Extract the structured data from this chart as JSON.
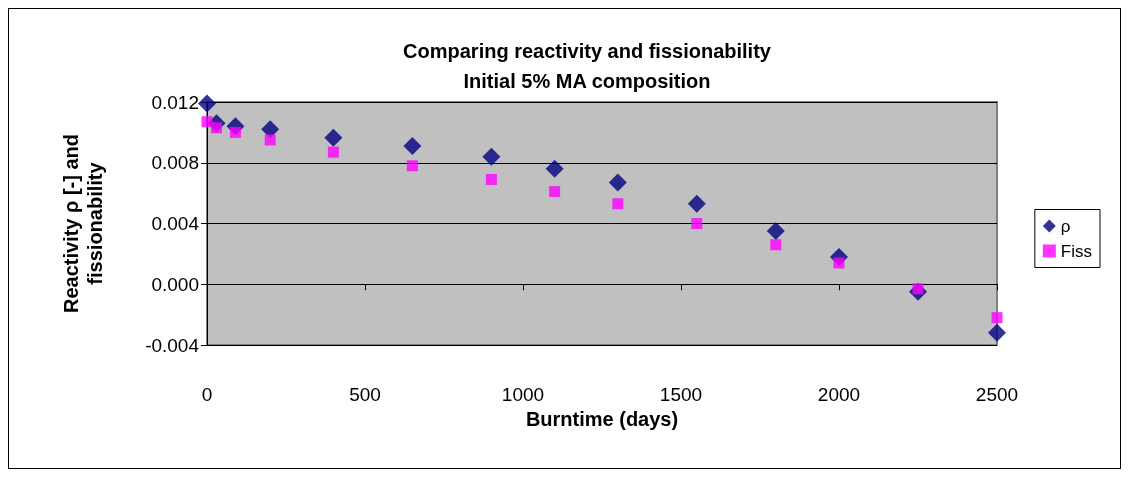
{
  "chart_data": {
    "type": "scatter",
    "title": "Comparing reactivity and fissionability\nInitial 5% MA composition",
    "xlabel": "Burntime (days)",
    "ylabel": "Reactivity ρ [-] and\nfissionability",
    "x": [
      0,
      30,
      90,
      200,
      400,
      650,
      900,
      1100,
      1300,
      1550,
      1800,
      2000,
      2250,
      2500
    ],
    "series": [
      {
        "name": "ρ",
        "color": "#000080",
        "marker": "diamond",
        "values": [
          0.0119,
          0.0106,
          0.0104,
          0.0102,
          0.00965,
          0.0091,
          0.0084,
          0.0076,
          0.0067,
          0.0053,
          0.0035,
          0.0018,
          -0.0005,
          -0.0032
        ]
      },
      {
        "name": "Fiss",
        "color": "#ff00ff",
        "marker": "square",
        "values": [
          0.0107,
          0.0103,
          0.01,
          0.0095,
          0.0087,
          0.0078,
          0.0069,
          0.0061,
          0.0053,
          0.004,
          0.0026,
          0.0014,
          -0.0003,
          -0.0022
        ]
      }
    ],
    "xlim": [
      0,
      2500
    ],
    "xticks": [
      0,
      500,
      1000,
      1500,
      2000,
      2500
    ],
    "ylim": [
      -0.004,
      0.012
    ],
    "yticks": [
      {
        "value": -0.004,
        "label": "-0.004"
      },
      {
        "value": 0,
        "label": "0.000"
      },
      {
        "value": 0.004,
        "label": "0.004"
      },
      {
        "value": 0.008,
        "label": "0.008"
      },
      {
        "value": 0.012,
        "label": "0.012"
      }
    ],
    "grid": "y",
    "legend": "right"
  }
}
